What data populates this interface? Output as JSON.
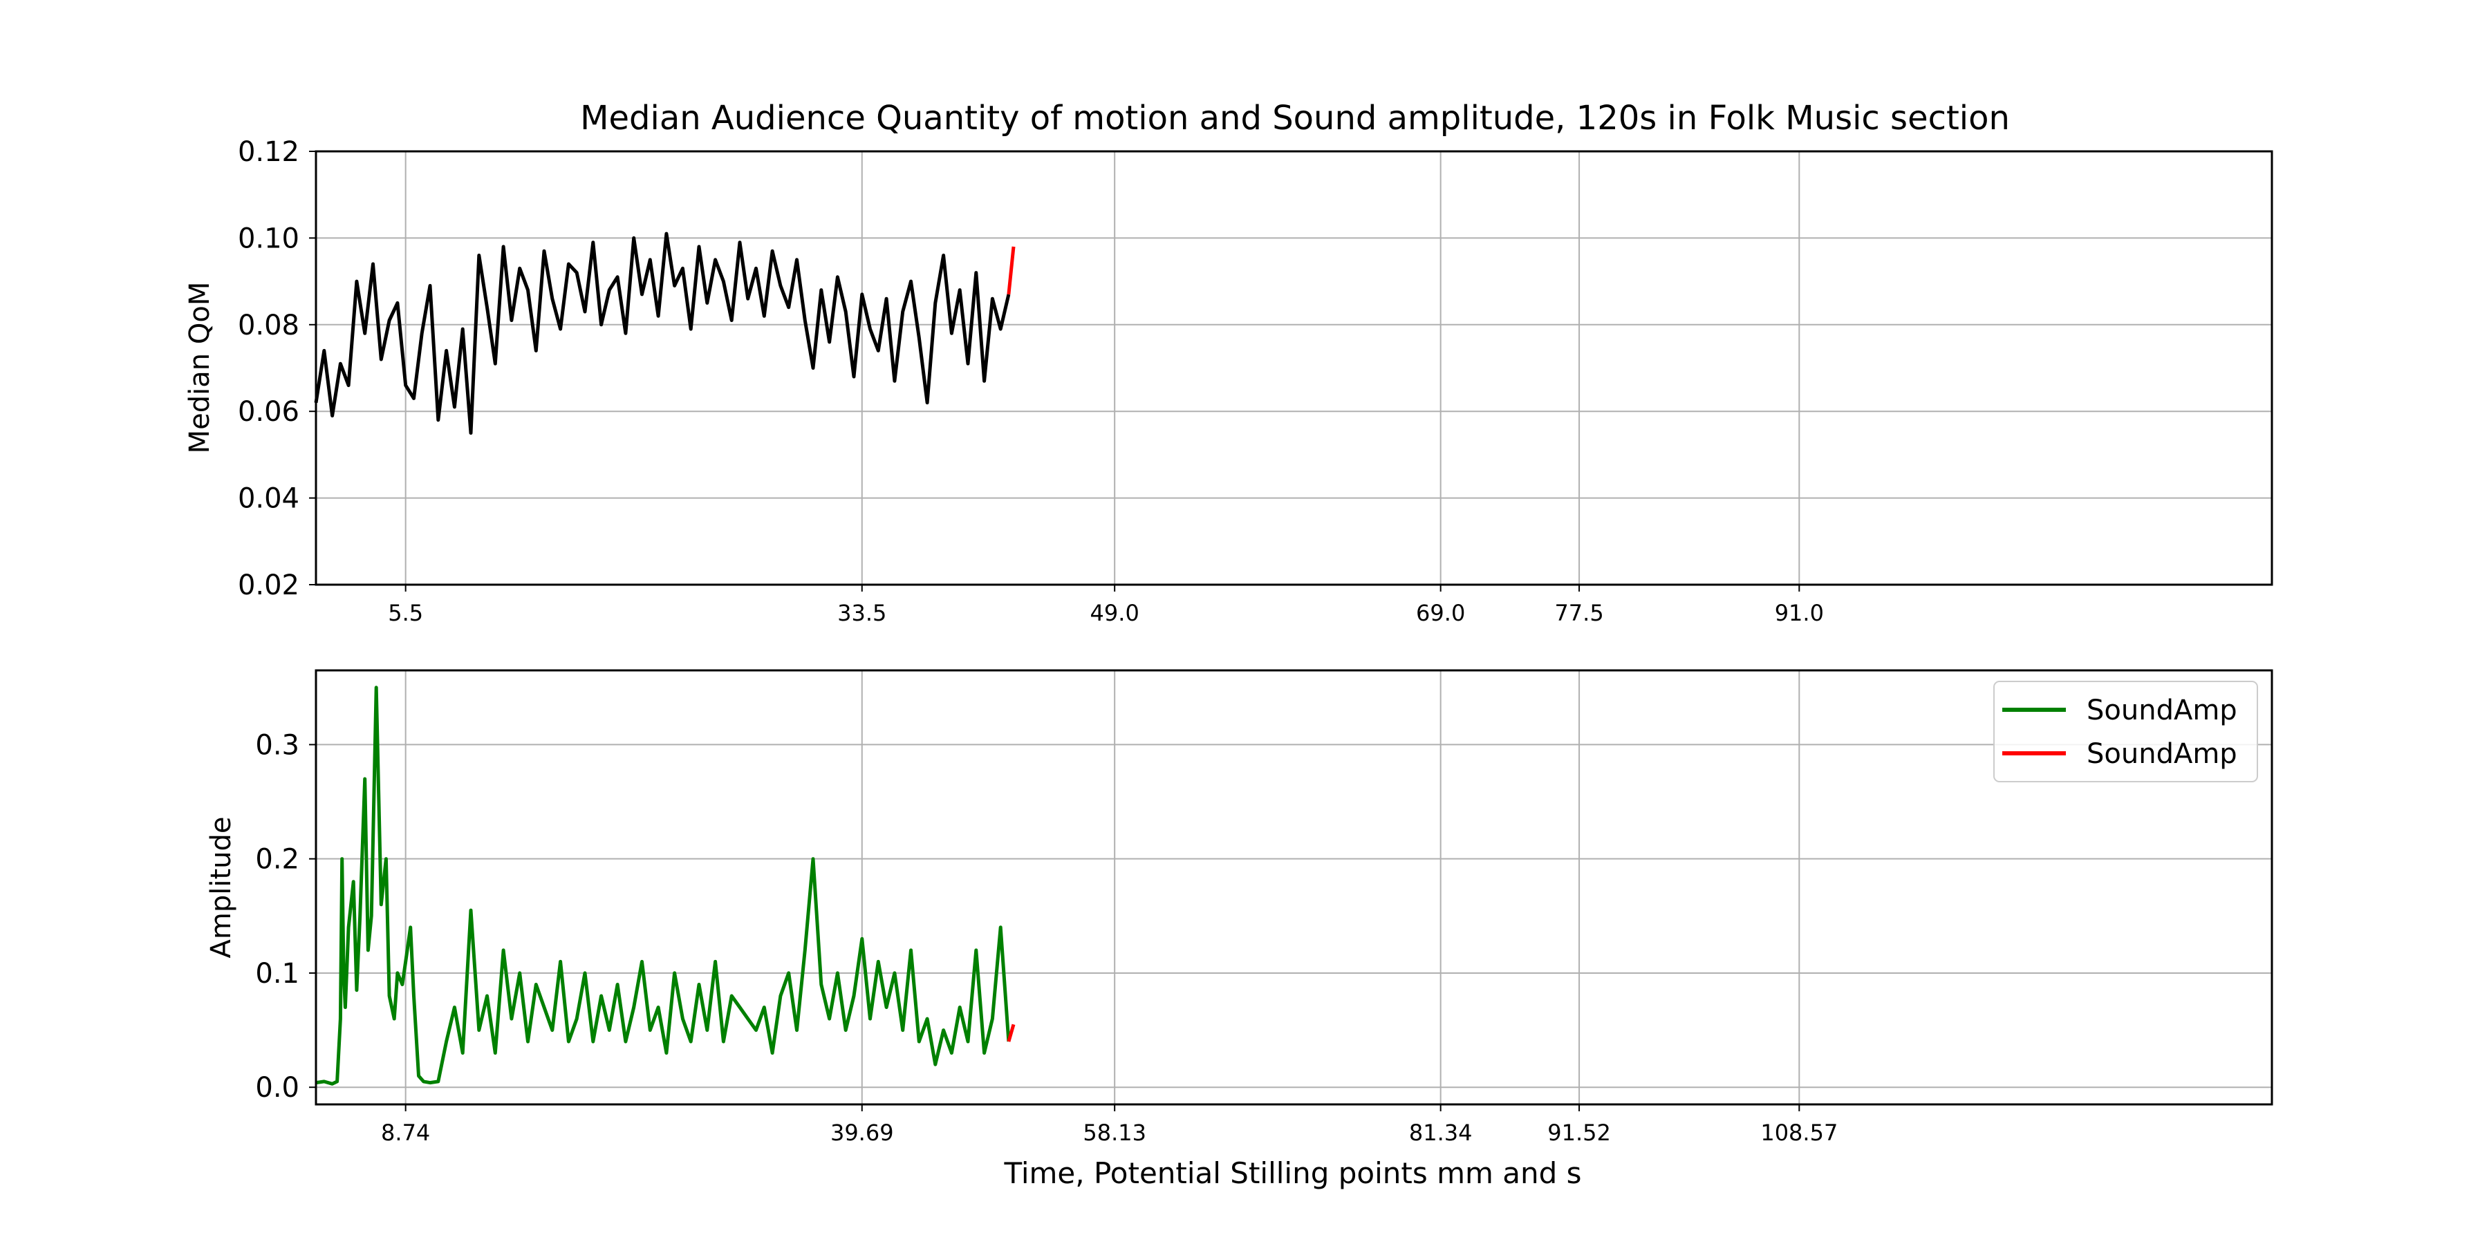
{
  "figure": {
    "title": "Median Audience Quantity of motion and Sound amplitude, 120s in Folk Music section"
  },
  "chart_data": [
    {
      "type": "line",
      "title": "Median Audience Quantity of motion and Sound amplitude, 120s in Folk Music section",
      "xlabel": "",
      "ylabel": "Median QoM",
      "xlim": [
        0,
        120
      ],
      "ylim": [
        0.02,
        0.12
      ],
      "yticks": [
        0.02,
        0.04,
        0.06,
        0.08,
        0.1,
        0.12
      ],
      "ytick_labels": [
        "0.02",
        "0.04",
        "0.06",
        "0.08",
        "0.10",
        "0.12"
      ],
      "xticks": [
        5.5,
        33.5,
        49.0,
        69.0,
        77.5,
        91.0
      ],
      "xtick_labels": [
        "5.5",
        "33.5",
        "49.0",
        "69.0",
        "77.5",
        "91.0"
      ],
      "grid": true,
      "legend": "none",
      "series": [
        {
          "color": "#000000",
          "x": [
            0.0,
            0.5,
            1.0,
            1.5,
            2.0,
            2.5,
            3.0,
            3.5,
            4.0,
            4.5,
            5.0,
            5.5,
            6.0,
            6.5,
            7.0,
            7.5,
            8.0,
            8.5,
            9.0,
            9.5,
            10.0,
            10.5,
            11.0,
            11.5,
            12.0,
            12.5,
            13.0,
            13.5,
            14.0,
            14.5,
            15.0,
            15.5,
            16.0,
            16.5,
            17.0,
            17.5,
            18.0,
            18.5,
            19.0,
            19.5,
            20.0,
            20.5,
            21.0,
            21.5,
            22.0,
            22.5,
            23.0,
            23.5,
            24.0,
            24.5,
            25.0,
            25.5,
            26.0,
            26.5,
            27.0,
            27.5,
            28.0,
            28.5,
            29.0,
            29.5,
            30.0,
            30.5,
            31.0,
            31.5,
            32.0,
            32.5,
            33.0,
            33.5,
            34.0,
            34.5,
            35.0,
            35.5,
            36.0,
            36.5,
            37.0,
            37.5,
            38.0,
            38.5,
            39.0,
            39.5,
            40.0,
            40.5,
            41.0,
            41.5,
            42.0,
            42.5
          ],
          "y": [
            0.062,
            0.074,
            0.059,
            0.071,
            0.066,
            0.09,
            0.078,
            0.094,
            0.072,
            0.081,
            0.085,
            0.066,
            0.063,
            0.078,
            0.089,
            0.058,
            0.074,
            0.061,
            0.079,
            0.055,
            0.096,
            0.084,
            0.071,
            0.098,
            0.081,
            0.093,
            0.088,
            0.074,
            0.097,
            0.086,
            0.079,
            0.094,
            0.092,
            0.083,
            0.099,
            0.08,
            0.088,
            0.091,
            0.078,
            0.1,
            0.087,
            0.095,
            0.082,
            0.101,
            0.089,
            0.093,
            0.079,
            0.098,
            0.085,
            0.095,
            0.09,
            0.081,
            0.099,
            0.086,
            0.093,
            0.082,
            0.097,
            0.089,
            0.084,
            0.095,
            0.081,
            0.07,
            0.088,
            0.076,
            0.091,
            0.083,
            0.068,
            0.087,
            0.079,
            0.074,
            0.086,
            0.067,
            0.083,
            0.09,
            0.077,
            0.062,
            0.085,
            0.096,
            0.078,
            0.088,
            0.071,
            0.092,
            0.067,
            0.086,
            0.079,
            0.087
          ]
        },
        {
          "color": "#ff0000",
          "x": [
            42.5,
            42.8
          ],
          "y": [
            0.087,
            0.098
          ]
        }
      ]
    },
    {
      "type": "line",
      "title": "",
      "xlabel": "Time, Potential Stilling points mm and s",
      "ylabel": "Amplitude",
      "xlim": [
        0,
        120
      ],
      "ylim": [
        -0.015,
        0.365
      ],
      "yticks": [
        0.0,
        0.1,
        0.2,
        0.3
      ],
      "ytick_labels": [
        "0.0",
        "0.1",
        "0.2",
        "0.3"
      ],
      "xticks": [
        8.74,
        39.69,
        58.13,
        81.34,
        91.52,
        108.57
      ],
      "xtick_labels": [
        "8.74",
        "39.69",
        "58.13",
        "81.34",
        "91.52",
        "108.57"
      ],
      "xtick_positions": [
        5.5,
        33.5,
        49.0,
        69.0,
        77.5,
        91.0
      ],
      "grid": true,
      "legend": "upper-right",
      "series": [
        {
          "name": "SoundAmp",
          "color": "#008000",
          "x": [
            0.0,
            0.5,
            1.0,
            1.3,
            1.5,
            1.6,
            1.7,
            1.8,
            2.0,
            2.3,
            2.5,
            2.7,
            3.0,
            3.2,
            3.4,
            3.7,
            4.0,
            4.3,
            4.5,
            4.8,
            5.0,
            5.3,
            5.5,
            5.8,
            6.0,
            6.3,
            6.6,
            7.0,
            7.5,
            8.0,
            8.5,
            9.0,
            9.5,
            10.0,
            10.5,
            11.0,
            11.5,
            12.0,
            12.5,
            13.0,
            13.5,
            14.0,
            14.5,
            15.0,
            15.5,
            16.0,
            16.5,
            17.0,
            17.5,
            18.0,
            18.5,
            19.0,
            19.5,
            20.0,
            20.5,
            21.0,
            21.5,
            22.0,
            22.5,
            23.0,
            23.5,
            24.0,
            24.5,
            25.0,
            25.5,
            26.0,
            26.5,
            27.0,
            27.5,
            28.0,
            28.5,
            29.0,
            29.5,
            30.0,
            30.5,
            31.0,
            31.5,
            32.0,
            32.5,
            33.0,
            33.5,
            34.0,
            34.5,
            35.0,
            35.5,
            36.0,
            36.5,
            37.0,
            37.5,
            38.0,
            38.5,
            39.0,
            39.5,
            40.0,
            40.5,
            41.0,
            41.5,
            42.0,
            42.5
          ],
          "y": [
            0.004,
            0.005,
            0.003,
            0.005,
            0.06,
            0.2,
            0.1,
            0.07,
            0.14,
            0.18,
            0.085,
            0.15,
            0.27,
            0.12,
            0.15,
            0.35,
            0.16,
            0.2,
            0.08,
            0.06,
            0.1,
            0.09,
            0.11,
            0.14,
            0.08,
            0.01,
            0.005,
            0.004,
            0.005,
            0.04,
            0.07,
            0.03,
            0.155,
            0.05,
            0.08,
            0.03,
            0.12,
            0.06,
            0.1,
            0.04,
            0.09,
            0.07,
            0.05,
            0.11,
            0.04,
            0.06,
            0.1,
            0.04,
            0.08,
            0.05,
            0.09,
            0.04,
            0.07,
            0.11,
            0.05,
            0.07,
            0.03,
            0.1,
            0.06,
            0.04,
            0.09,
            0.05,
            0.11,
            0.04,
            0.08,
            0.07,
            0.06,
            0.05,
            0.07,
            0.03,
            0.08,
            0.1,
            0.05,
            0.12,
            0.2,
            0.09,
            0.06,
            0.1,
            0.05,
            0.08,
            0.13,
            0.06,
            0.11,
            0.07,
            0.1,
            0.05,
            0.12,
            0.04,
            0.06,
            0.02,
            0.05,
            0.03,
            0.07,
            0.04,
            0.12,
            0.03,
            0.06,
            0.14,
            0.04
          ]
        },
        {
          "name": "SoundAmp",
          "color": "#ff0000",
          "x": [
            42.5,
            42.8
          ],
          "y": [
            0.04,
            0.055
          ]
        }
      ]
    }
  ]
}
